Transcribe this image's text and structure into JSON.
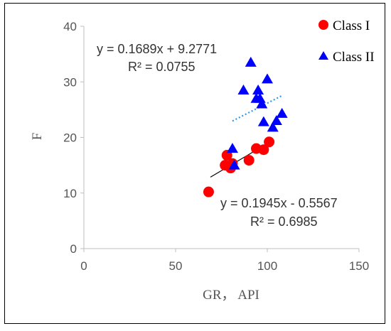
{
  "chart_data": {
    "type": "scatter",
    "xlabel": "GR， API",
    "ylabel": "F",
    "xlim": [
      0,
      150
    ],
    "ylim": [
      0,
      40
    ],
    "x_ticks": [
      "0",
      "50",
      "100",
      "150"
    ],
    "y_ticks": [
      "0",
      "10",
      "20",
      "30",
      "40"
    ],
    "grid": false,
    "legend_position": "top-right",
    "series": [
      {
        "name": "Class I",
        "marker": "circle",
        "color": "#ff0000",
        "points": [
          [
            68,
            10.2
          ],
          [
            77,
            15.0
          ],
          [
            78,
            16.8
          ],
          [
            80,
            14.5
          ],
          [
            81,
            15.3
          ],
          [
            90,
            15.9
          ],
          [
            94,
            18.0
          ],
          [
            98,
            17.8
          ],
          [
            101,
            19.2
          ]
        ],
        "trendline": {
          "equation": "y = 0.1945x - 0.5567",
          "r2": "R² = 0.6985",
          "slope": 0.1945,
          "intercept": -0.5567,
          "x_range": [
            69,
            101
          ],
          "style": "solid",
          "color": "#000000"
        }
      },
      {
        "name": "Class II",
        "marker": "triangle",
        "color": "#0000ff",
        "points": [
          [
            81,
            18.0
          ],
          [
            82,
            15.0
          ],
          [
            87,
            28.5
          ],
          [
            91,
            33.5
          ],
          [
            94,
            27.0
          ],
          [
            95,
            28.5
          ],
          [
            96,
            27.0
          ],
          [
            97,
            26.0
          ],
          [
            98,
            22.8
          ],
          [
            100,
            30.5
          ],
          [
            103,
            21.8
          ],
          [
            105,
            23.0
          ],
          [
            108,
            24.3
          ]
        ],
        "trendline": {
          "equation": "y = 0.1689x + 9.2771",
          "r2": "R² = 0.0755",
          "slope": 0.1689,
          "intercept": 9.2771,
          "x_range": [
            81,
            108
          ],
          "style": "dotted",
          "color": "#3399dd"
        }
      }
    ]
  }
}
